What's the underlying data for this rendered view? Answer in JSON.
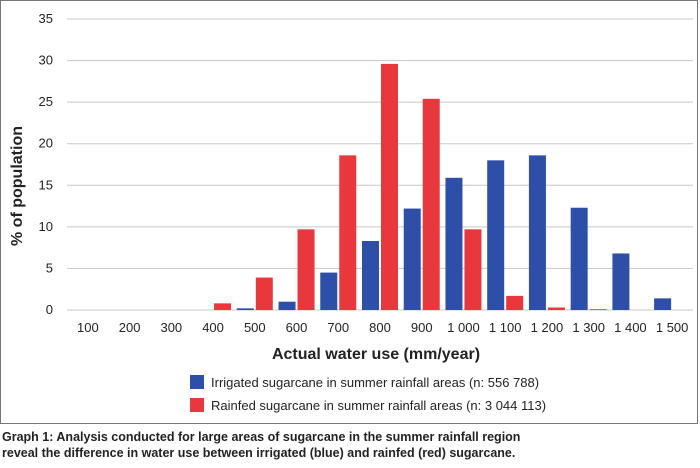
{
  "chart_data": {
    "type": "bar",
    "categories": [
      "100",
      "200",
      "300",
      "400",
      "500",
      "600",
      "700",
      "800",
      "900",
      "1 000",
      "1 100",
      "1 200",
      "1 300",
      "1 400",
      "1 500"
    ],
    "series": [
      {
        "name": "Irrigated sugarcane in summer rainfall areas (n: 556 788)",
        "color": "#2e4fa8",
        "values": [
          0,
          0,
          0,
          0,
          0.2,
          1.0,
          4.5,
          8.3,
          12.2,
          15.9,
          18.0,
          18.6,
          12.3,
          6.8,
          1.4
        ]
      },
      {
        "name": "Rainfed sugarcane in summer rainfall areas (n: 3 044 113)",
        "color": "#e8383d",
        "values": [
          0,
          0,
          0,
          0.8,
          3.9,
          9.7,
          18.6,
          29.6,
          25.4,
          9.7,
          1.7,
          0.3,
          0.1,
          0,
          0
        ]
      }
    ],
    "xlabel": "Actual water use (mm/year)",
    "ylabel": "% of population",
    "ylim": [
      0,
      35
    ],
    "yticks": [
      0,
      5,
      10,
      15,
      20,
      25,
      30,
      35
    ],
    "grid": true,
    "legend_position": "bottom-center"
  },
  "caption": {
    "line1": "Graph 1: Analysis conducted for large areas of sugarcane in the summer rainfall region",
    "line2": "reveal the difference in water use between irrigated (blue) and rainfed (red) sugarcane."
  }
}
